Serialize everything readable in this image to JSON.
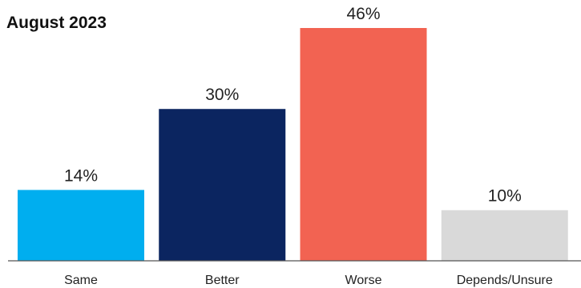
{
  "chart_data": {
    "type": "bar",
    "title": "August 2023",
    "categories": [
      "Same",
      "Better",
      "Worse",
      "Depends/Unsure"
    ],
    "values": [
      14,
      30,
      46,
      10
    ],
    "value_suffix": "%",
    "colors": [
      "#00AEEF",
      "#0B2560",
      "#F26352",
      "#D9D9D9"
    ],
    "ylim": [
      0,
      46
    ],
    "xlabel": "",
    "ylabel": "",
    "grid": false,
    "legend": "none"
  }
}
